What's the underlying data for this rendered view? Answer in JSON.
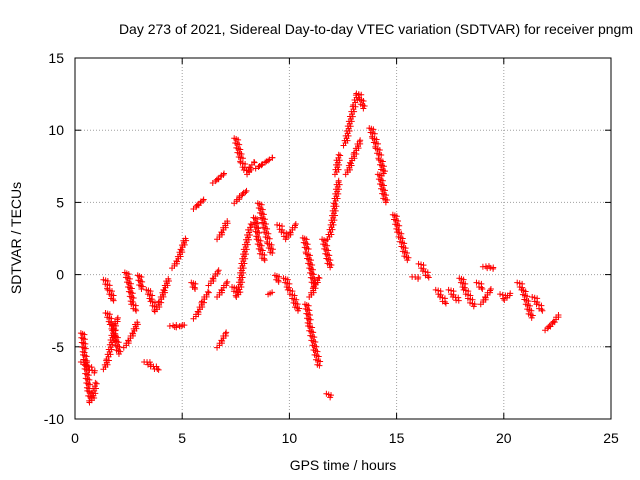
{
  "chart_data": {
    "type": "scatter",
    "title": "Day 273 of 2021, Sidereal Day-to-day VTEC variation (SDTVAR) for receiver pngm",
    "xlabel": "GPS time / hours",
    "ylabel": "SDTVAR / TECUs",
    "xlim": [
      0,
      25
    ],
    "ylim": [
      -10,
      15
    ],
    "xticks": [
      0,
      5,
      10,
      15,
      20,
      25
    ],
    "yticks": [
      -10,
      -5,
      0,
      5,
      10,
      15
    ],
    "xtick_labels": [
      "0",
      "5",
      "10",
      "15",
      "20",
      "25"
    ],
    "ytick_labels": [
      "-10",
      "-5",
      "0",
      "5",
      "10",
      "15"
    ],
    "grid": true,
    "marker": "+",
    "color": "#ff0000",
    "series": [
      {
        "name": "SDTVAR",
        "segments": [
          [
            [
              0.35,
              -4.0
            ],
            [
              0.45,
              -5.5
            ],
            [
              0.55,
              -6.8
            ],
            [
              0.65,
              -8.0
            ],
            [
              0.75,
              -8.8
            ],
            [
              0.85,
              -8.5
            ],
            [
              0.95,
              -7.5
            ]
          ],
          [
            [
              0.35,
              -6.0
            ],
            [
              0.6,
              -6.3
            ],
            [
              0.9,
              -6.8
            ]
          ],
          [
            [
              1.4,
              -0.3
            ],
            [
              1.6,
              -1.0
            ],
            [
              1.8,
              -1.8
            ]
          ],
          [
            [
              1.4,
              -6.5
            ],
            [
              1.55,
              -5.8
            ],
            [
              1.7,
              -4.8
            ],
            [
              1.85,
              -3.5
            ],
            [
              2.0,
              -3.0
            ]
          ],
          [
            [
              1.5,
              -2.6
            ],
            [
              1.7,
              -3.4
            ],
            [
              1.9,
              -4.2
            ],
            [
              2.05,
              -5.5
            ]
          ],
          [
            [
              2.4,
              0.2
            ],
            [
              2.55,
              -0.8
            ],
            [
              2.7,
              -2.0
            ],
            [
              2.85,
              -2.5
            ]
          ],
          [
            [
              2.35,
              -5.0
            ],
            [
              2.55,
              -4.5
            ],
            [
              2.75,
              -4.0
            ],
            [
              2.9,
              -3.3
            ]
          ],
          [
            [
              3.0,
              0.0
            ],
            [
              3.1,
              -1.0
            ]
          ],
          [
            [
              3.3,
              -6.0
            ],
            [
              3.6,
              -6.3
            ],
            [
              3.9,
              -6.6
            ]
          ],
          [
            [
              3.4,
              -1.0
            ],
            [
              3.6,
              -1.8
            ],
            [
              3.8,
              -2.5
            ],
            [
              4.0,
              -1.8
            ],
            [
              4.2,
              -1.0
            ],
            [
              4.35,
              -0.3
            ]
          ],
          [
            [
              4.5,
              -3.5
            ],
            [
              4.8,
              -3.6
            ],
            [
              5.1,
              -3.5
            ]
          ],
          [
            [
              4.6,
              0.5
            ],
            [
              4.8,
              1.0
            ],
            [
              5.0,
              1.8
            ],
            [
              5.15,
              2.5
            ]
          ],
          [
            [
              5.5,
              -0.5
            ],
            [
              5.6,
              -1.0
            ]
          ],
          [
            [
              5.6,
              -3.0
            ],
            [
              5.8,
              -2.5
            ],
            [
              6.0,
              -1.8
            ],
            [
              6.2,
              -1.2
            ]
          ],
          [
            [
              5.6,
              4.6
            ],
            [
              5.8,
              4.9
            ],
            [
              6.0,
              5.2
            ]
          ],
          [
            [
              6.3,
              -0.7
            ],
            [
              6.5,
              -0.2
            ],
            [
              6.7,
              0.3
            ]
          ],
          [
            [
              6.5,
              6.4
            ],
            [
              6.75,
              6.7
            ],
            [
              6.95,
              7.0
            ]
          ],
          [
            [
              6.7,
              -1.5
            ],
            [
              6.9,
              -1.0
            ],
            [
              7.1,
              -0.5
            ]
          ],
          [
            [
              6.7,
              2.5
            ],
            [
              6.9,
              3.0
            ],
            [
              7.1,
              3.7
            ]
          ],
          [
            [
              6.7,
              -5.0
            ],
            [
              6.9,
              -4.5
            ],
            [
              7.05,
              -4.0
            ]
          ],
          [
            [
              7.4,
              -0.8
            ],
            [
              7.6,
              -1.5
            ],
            [
              7.7,
              -0.8
            ],
            [
              7.8,
              0.5
            ],
            [
              7.95,
              1.8
            ],
            [
              8.1,
              2.8
            ],
            [
              8.2,
              3.5
            ]
          ],
          [
            [
              7.5,
              9.5
            ],
            [
              7.65,
              8.5
            ],
            [
              7.8,
              7.8
            ],
            [
              7.95,
              7.3
            ],
            [
              8.1,
              7.0
            ],
            [
              8.2,
              7.5
            ],
            [
              8.35,
              7.8
            ]
          ],
          [
            [
              7.5,
              5.0
            ],
            [
              7.75,
              5.5
            ],
            [
              8.0,
              5.8
            ]
          ],
          [
            [
              8.4,
              4.0
            ],
            [
              8.55,
              2.5
            ],
            [
              8.7,
              1.5
            ],
            [
              8.85,
              1.0
            ]
          ],
          [
            [
              8.6,
              5.0
            ],
            [
              8.75,
              4.0
            ],
            [
              8.9,
              3.0
            ],
            [
              9.05,
              2.2
            ],
            [
              9.2,
              1.5
            ]
          ],
          [
            [
              8.5,
              7.4
            ],
            [
              8.8,
              7.7
            ],
            [
              9.2,
              8.1
            ]
          ],
          [
            [
              9.1,
              -1.3
            ]
          ],
          [
            [
              9.4,
              0.0
            ],
            [
              9.5,
              -0.5
            ]
          ],
          [
            [
              9.5,
              3.5
            ],
            [
              9.7,
              3.0
            ],
            [
              9.9,
              2.5
            ],
            [
              10.1,
              3.0
            ],
            [
              10.3,
              3.5
            ]
          ],
          [
            [
              9.8,
              -0.2
            ],
            [
              10.0,
              -1.0
            ],
            [
              10.2,
              -1.6
            ],
            [
              10.4,
              -2.5
            ]
          ],
          [
            [
              10.7,
              2.6
            ],
            [
              10.85,
              1.5
            ],
            [
              11.0,
              0.5
            ],
            [
              11.15,
              -0.8
            ]
          ],
          [
            [
              10.8,
              -2.0
            ],
            [
              10.95,
              -3.5
            ],
            [
              11.1,
              -4.5
            ],
            [
              11.25,
              -5.5
            ],
            [
              11.4,
              -6.3
            ]
          ],
          [
            [
              11.0,
              -1.5
            ],
            [
              11.2,
              -0.8
            ],
            [
              11.35,
              -0.2
            ]
          ],
          [
            [
              11.6,
              2.5
            ],
            [
              11.75,
              1.5
            ],
            [
              11.9,
              0.5
            ]
          ],
          [
            [
              11.8,
              -8.2
            ],
            [
              11.9,
              -8.5
            ]
          ],
          [
            [
              11.85,
              2.5
            ],
            [
              12.0,
              3.5
            ],
            [
              12.15,
              5.0
            ],
            [
              12.3,
              6.5
            ]
          ],
          [
            [
              12.2,
              7.0
            ],
            [
              12.3,
              8.3
            ]
          ],
          [
            [
              12.6,
              9.0
            ],
            [
              12.75,
              10.0
            ],
            [
              12.9,
              11.0
            ],
            [
              13.05,
              11.8
            ],
            [
              13.2,
              12.6
            ],
            [
              13.35,
              12.2
            ],
            [
              13.45,
              11.5
            ]
          ],
          [
            [
              12.7,
              7.0
            ],
            [
              12.9,
              7.8
            ],
            [
              13.1,
              8.5
            ],
            [
              13.3,
              9.3
            ]
          ],
          [
            [
              13.8,
              10.2
            ],
            [
              13.95,
              9.5
            ],
            [
              14.1,
              8.8
            ],
            [
              14.25,
              8.0
            ],
            [
              14.4,
              7.0
            ]
          ],
          [
            [
              14.2,
              7.0
            ],
            [
              14.35,
              6.0
            ],
            [
              14.5,
              5.0
            ]
          ],
          [
            [
              14.9,
              4.2
            ],
            [
              15.1,
              3.0
            ],
            [
              15.3,
              2.0
            ],
            [
              15.5,
              1.0
            ]
          ],
          [
            [
              15.8,
              -0.1
            ],
            [
              16.0,
              -0.3
            ]
          ],
          [
            [
              16.1,
              0.8
            ],
            [
              16.3,
              0.3
            ],
            [
              16.5,
              -0.2
            ]
          ],
          [
            [
              16.9,
              -1.0
            ],
            [
              17.1,
              -1.5
            ],
            [
              17.3,
              -2.0
            ]
          ],
          [
            [
              17.5,
              -1.0
            ],
            [
              17.7,
              -1.5
            ],
            [
              17.9,
              -1.8
            ]
          ],
          [
            [
              18.0,
              -0.2
            ],
            [
              18.2,
              -1.0
            ],
            [
              18.4,
              -1.6
            ],
            [
              18.6,
              -2.2
            ]
          ],
          [
            [
              18.8,
              -0.5
            ],
            [
              19.0,
              -1.0
            ]
          ],
          [
            [
              19.0,
              -2.0
            ],
            [
              19.2,
              -1.5
            ],
            [
              19.4,
              -1.0
            ]
          ],
          [
            [
              19.1,
              0.6
            ],
            [
              19.3,
              0.5
            ],
            [
              19.5,
              0.4
            ]
          ],
          [
            [
              19.9,
              -1.3
            ],
            [
              20.1,
              -1.7
            ],
            [
              20.3,
              -1.3
            ]
          ],
          [
            [
              20.7,
              -0.5
            ],
            [
              20.9,
              -1.0
            ],
            [
              21.1,
              -2.0
            ],
            [
              21.3,
              -3.0
            ]
          ],
          [
            [
              21.4,
              -1.5
            ],
            [
              21.6,
              -2.0
            ],
            [
              21.8,
              -2.5
            ]
          ],
          [
            [
              22.0,
              -3.8
            ],
            [
              22.2,
              -3.5
            ],
            [
              22.4,
              -3.2
            ],
            [
              22.55,
              -2.8
            ]
          ]
        ]
      }
    ]
  }
}
